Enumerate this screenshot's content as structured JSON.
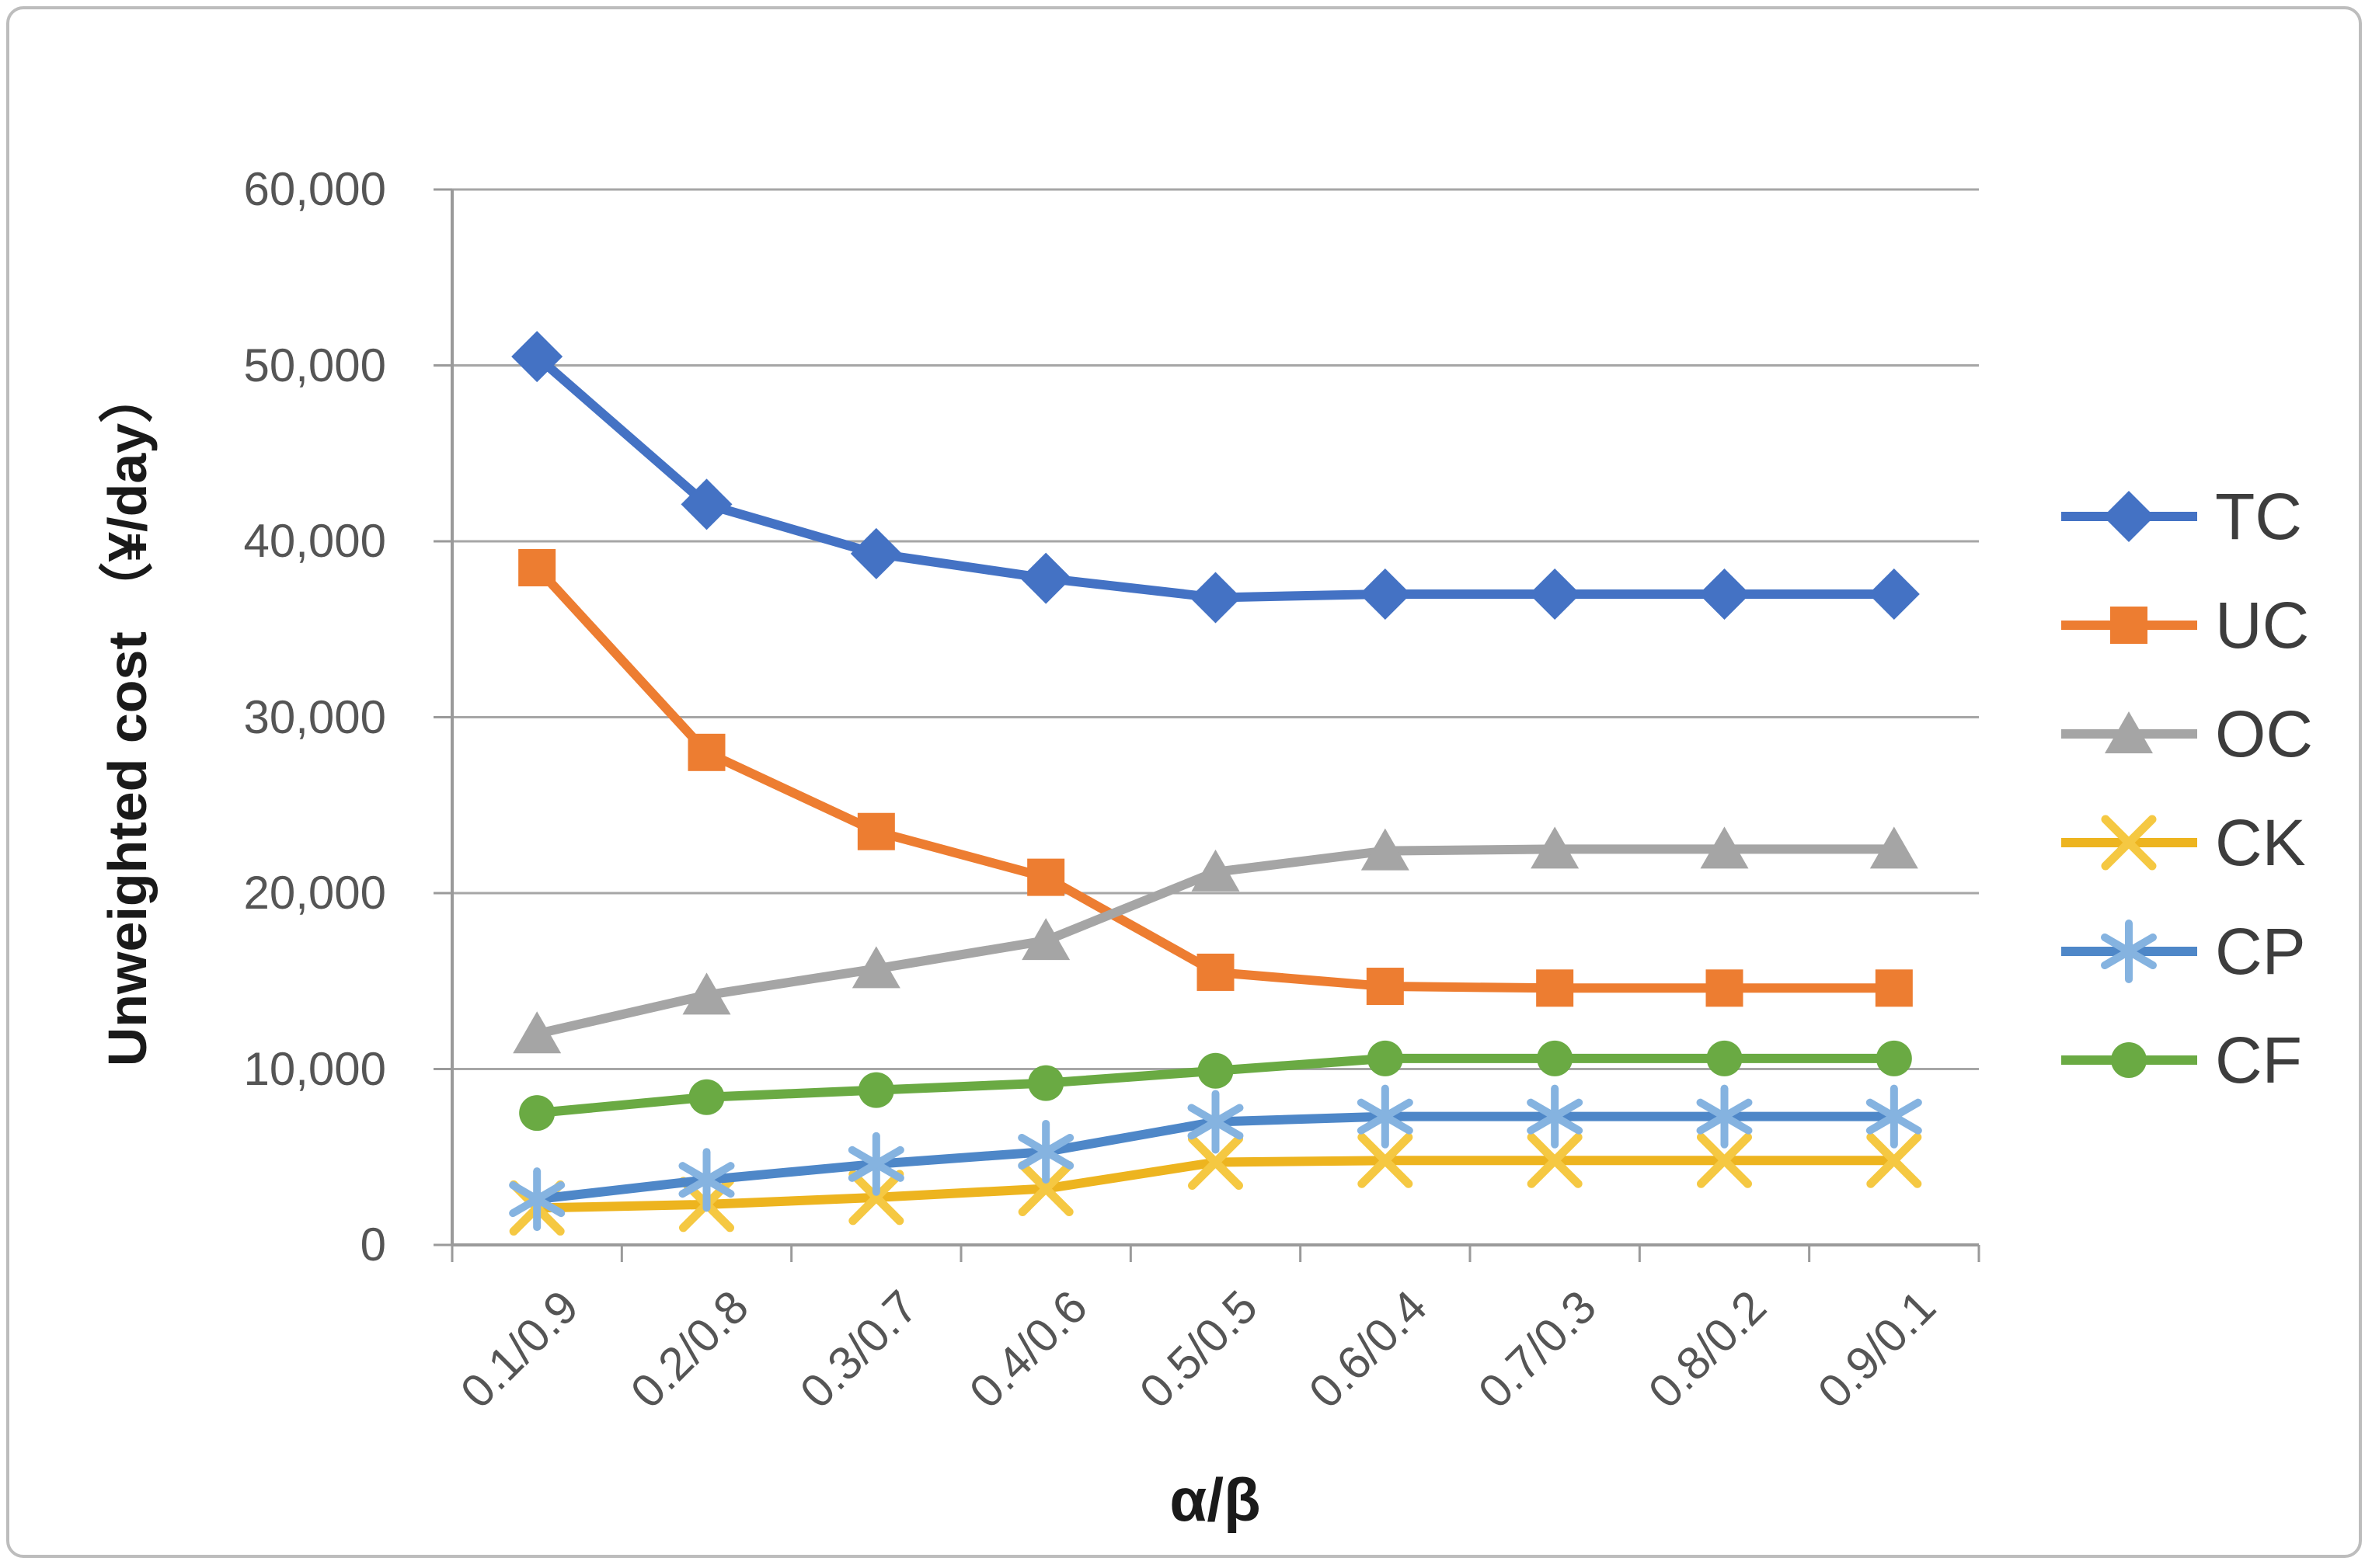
{
  "figure": {
    "background_color": "#ffffff",
    "border_color": "#bdbdbd"
  },
  "chart_data": {
    "type": "line",
    "title": "",
    "xlabel": "α/β",
    "ylabel": "Unweighted cost （¥/day）",
    "categories": [
      "0.1/0.9",
      "0.2/0.8",
      "0.3/0.7",
      "0.4/0.6",
      "0.5/0.5",
      "0.6/0.4",
      "0.7/0.3",
      "0.8/0.2",
      "0.9/0.1"
    ],
    "y_tick_labels": [
      "0",
      "10,000",
      "20,000",
      "30,000",
      "40,000",
      "50,000",
      "60,000"
    ],
    "ylim": [
      0,
      60000
    ],
    "y_tick_step": 10000,
    "grid": true,
    "gridline_color": "#a6a6a6",
    "axis_line_color": "#9a9a9a",
    "legend_position": "right",
    "series": [
      {
        "name": "TC",
        "marker": "diamond",
        "line_color": "#4472C4",
        "marker_color": "#4472C4",
        "values": [
          50500,
          42100,
          39300,
          37900,
          36800,
          37000,
          37000,
          37000,
          37000
        ]
      },
      {
        "name": "UC",
        "marker": "square",
        "line_color": "#ED7D31",
        "marker_color": "#ED7D31",
        "values": [
          38500,
          28000,
          23500,
          20900,
          15500,
          14700,
          14600,
          14600,
          14600
        ]
      },
      {
        "name": "OC",
        "marker": "triangle",
        "line_color": "#A5A5A5",
        "marker_color": "#A5A5A5",
        "values": [
          12000,
          14200,
          15700,
          17300,
          21200,
          22400,
          22500,
          22500,
          22500
        ]
      },
      {
        "name": "CK",
        "marker": "x",
        "line_color": "#EDB41F",
        "marker_color": "#F5C842",
        "values": [
          2100,
          2300,
          2700,
          3200,
          4700,
          4800,
          4800,
          4800,
          4800
        ]
      },
      {
        "name": "CP",
        "marker": "asterisk",
        "line_color": "#4E87C8",
        "marker_color": "#85B3E0",
        "values": [
          2600,
          3700,
          4600,
          5300,
          7000,
          7300,
          7300,
          7300,
          7300
        ]
      },
      {
        "name": "CF",
        "marker": "circle",
        "line_color": "#6AAA43",
        "marker_color": "#6AAA43",
        "values": [
          7500,
          8400,
          8800,
          9200,
          9900,
          10600,
          10600,
          10600,
          10600
        ]
      }
    ]
  }
}
